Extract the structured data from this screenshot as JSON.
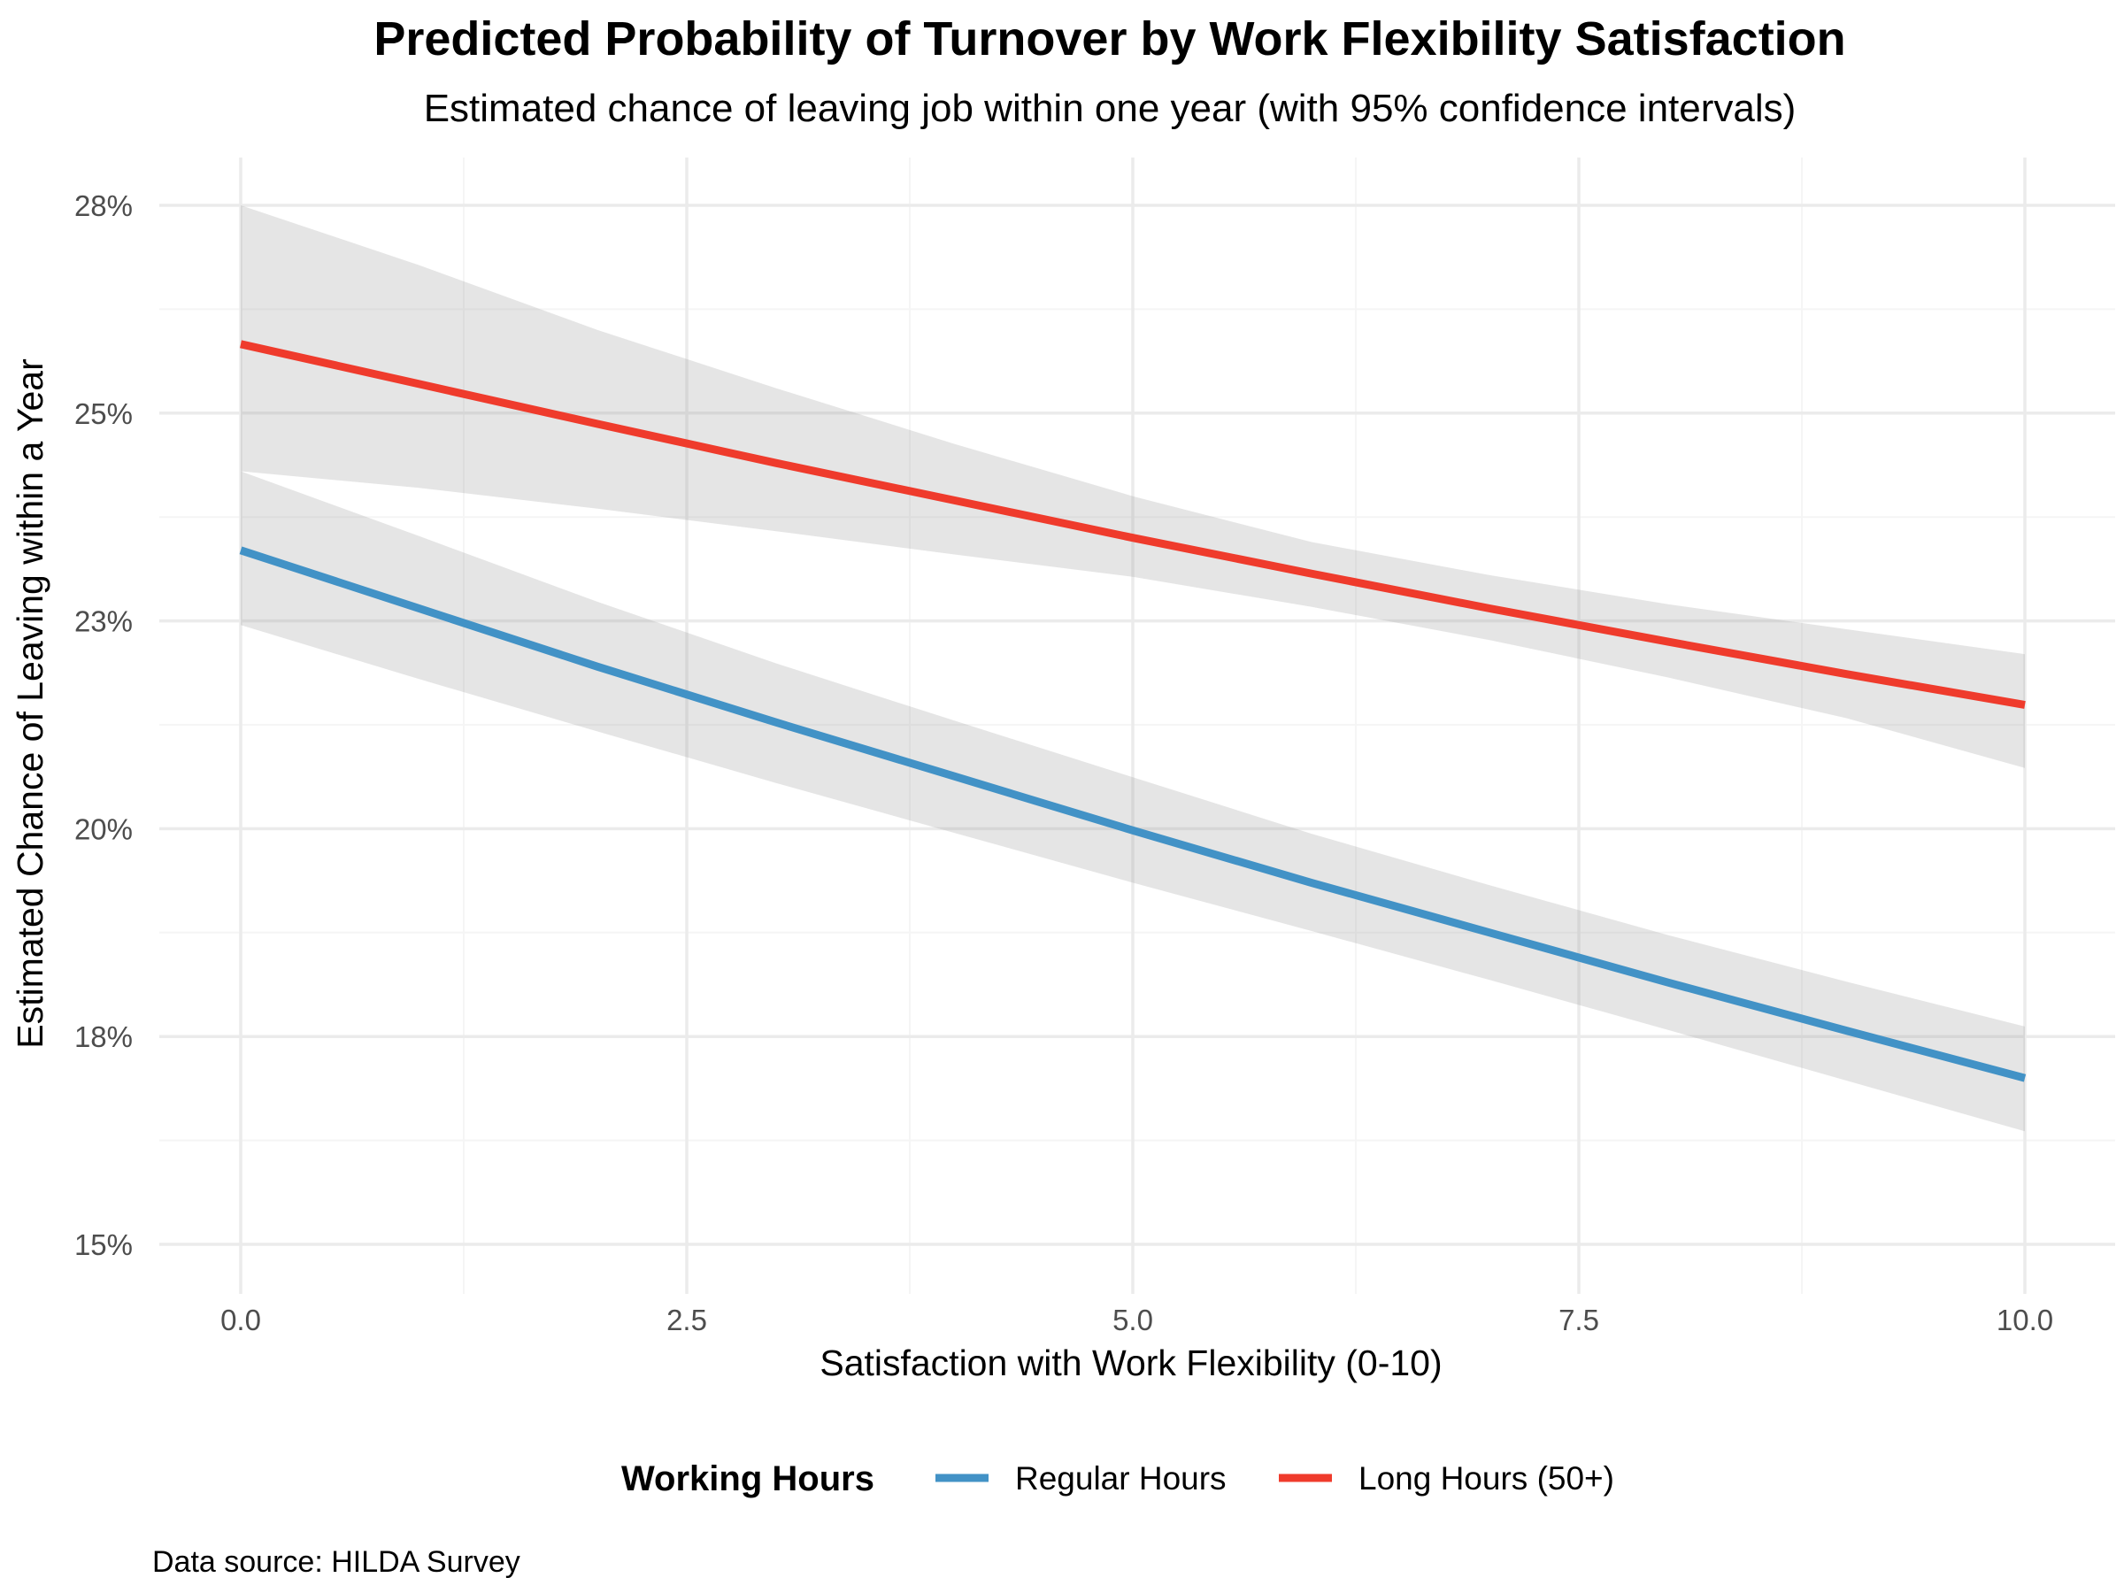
{
  "chart_data": {
    "type": "line",
    "title": "Predicted Probability of Turnover by Work Flexibility Satisfaction",
    "subtitle": "Estimated chance of leaving job within one year (with 95% confidence intervals)",
    "xlabel": "Satisfaction with Work Flexibility (0-10)",
    "ylabel": "Estimated Chance of Leaving within a Year",
    "caption": "Data source: HILDA Survey",
    "xlim": [
      0,
      10
    ],
    "ylim": [
      0.15,
      0.275
    ],
    "x_ticks": [
      0,
      2.5,
      5,
      7.5,
      10
    ],
    "x_tick_labels": [
      "0.0",
      "2.5",
      "5.0",
      "7.5",
      "10.0"
    ],
    "y_ticks": [
      0.15,
      0.175,
      0.2,
      0.225,
      0.25,
      0.275
    ],
    "y_tick_labels": [
      "15%",
      "18%",
      "20%",
      "23%",
      "25%",
      "28%"
    ],
    "grid": true,
    "legend": {
      "title": "Working Hours",
      "position": "bottom"
    },
    "series": [
      {
        "name": "Regular Hours",
        "color": "#4292c6",
        "x": [
          0,
          1,
          2,
          3,
          4,
          5,
          6,
          7,
          8,
          9,
          10
        ],
        "y": [
          0.2335,
          0.2265,
          0.2195,
          0.2128,
          0.2063,
          0.1998,
          0.1935,
          0.1875,
          0.1815,
          0.1757,
          0.17
        ],
        "ci_lower": [
          0.2245,
          0.218,
          0.2117,
          0.2055,
          0.1995,
          0.1935,
          0.1877,
          0.1818,
          0.1758,
          0.1697,
          0.1636
        ],
        "ci_upper": [
          0.243,
          0.2352,
          0.2273,
          0.2199,
          0.213,
          0.2062,
          0.1994,
          0.1932,
          0.1872,
          0.1816,
          0.1762
        ]
      },
      {
        "name": "Long Hours (50+)",
        "color": "#ef3b2c",
        "x": [
          0,
          1,
          2,
          3,
          4,
          5,
          6,
          7,
          8,
          9,
          10
        ],
        "y": [
          0.2583,
          0.2535,
          0.2487,
          0.244,
          0.2395,
          0.235,
          0.2307,
          0.2265,
          0.2225,
          0.2186,
          0.2149
        ],
        "ci_lower": [
          0.243,
          0.241,
          0.2385,
          0.2358,
          0.233,
          0.2303,
          0.2267,
          0.2227,
          0.2182,
          0.2133,
          0.2073
        ],
        "ci_upper": [
          0.275,
          0.2678,
          0.26,
          0.253,
          0.2463,
          0.24,
          0.2345,
          0.2305,
          0.227,
          0.224,
          0.221
        ]
      }
    ]
  }
}
